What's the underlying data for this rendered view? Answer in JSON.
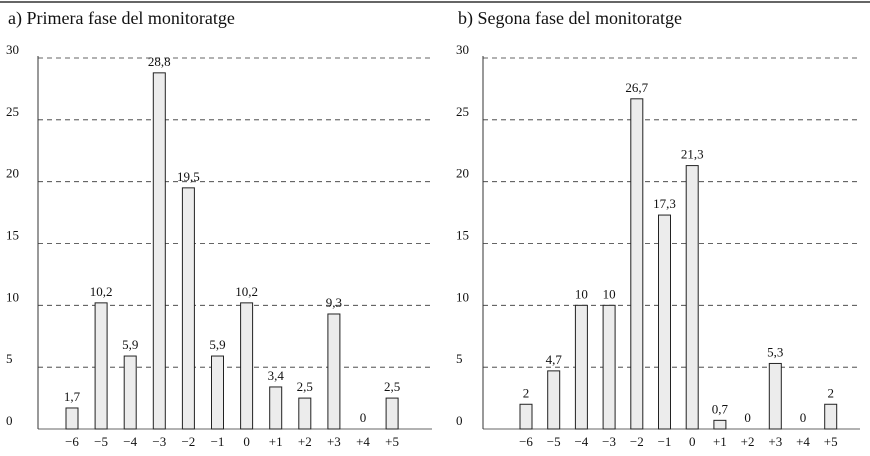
{
  "chart_data": [
    {
      "type": "bar",
      "title": "a) Primera fase del monitoratge",
      "categories": [
        "−6",
        "−5",
        "−4",
        "−3",
        "−2",
        "−1",
        "0",
        "+1",
        "+2",
        "+3",
        "+4",
        "+5"
      ],
      "values": [
        1.7,
        10.2,
        5.9,
        28.8,
        19.5,
        5.9,
        10.2,
        3.4,
        2.5,
        9.3,
        0,
        2.5
      ],
      "value_labels": [
        "1,7",
        "10,2",
        "5,9",
        "28,8",
        "19,5",
        "5,9",
        "10,2",
        "3,4",
        "2,5",
        "9,3",
        "0",
        "2,5"
      ],
      "color": "#ececec",
      "ylim": [
        0,
        30
      ],
      "yticks": [
        0,
        5,
        10,
        15,
        20,
        25,
        30
      ],
      "grid": true
    },
    {
      "type": "bar",
      "title": "b) Segona fase del monitoratge",
      "categories": [
        "−6",
        "−5",
        "−4",
        "−3",
        "−2",
        "−1",
        "0",
        "+1",
        "+2",
        "+3",
        "+4",
        "+5"
      ],
      "values": [
        2,
        4.7,
        10,
        10,
        26.7,
        17.3,
        21.3,
        0.7,
        0,
        5.3,
        0,
        2
      ],
      "value_labels": [
        "2",
        "4,7",
        "10",
        "10",
        "26,7",
        "17,3",
        "21,3",
        "0,7",
        "0",
        "5,3",
        "0",
        "2"
      ],
      "color": "#ececec",
      "ylim": [
        0,
        30
      ],
      "yticks": [
        0,
        5,
        10,
        15,
        20,
        25,
        30
      ],
      "grid": true
    }
  ]
}
